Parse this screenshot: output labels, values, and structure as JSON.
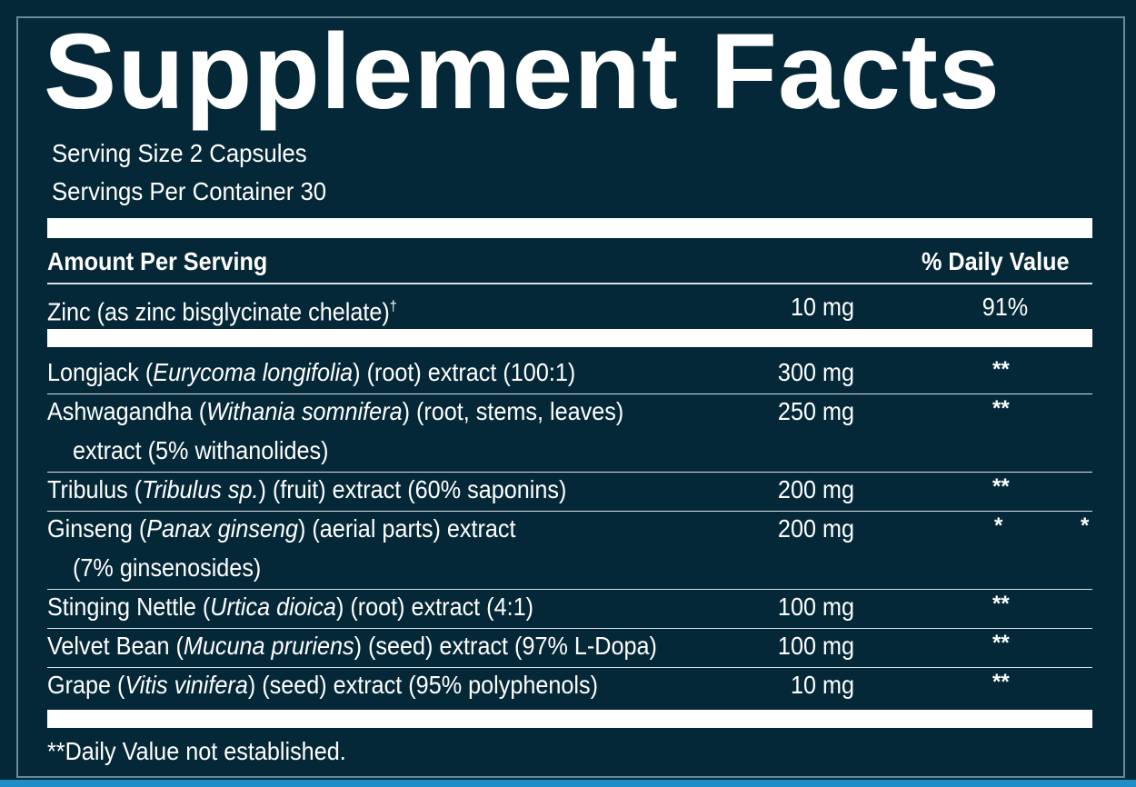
{
  "title": "Supplement Facts",
  "serving_size": "Serving Size 2 Capsules",
  "servings_per_container": "Servings Per Container 30",
  "header": {
    "amount_per_serving": "Amount Per Serving",
    "daily_value": "% Daily Value"
  },
  "zinc": {
    "name": "Zinc (as zinc bisglycinate chelate)",
    "dagger": "†",
    "amount": "10 mg",
    "dv": "91%"
  },
  "ingredients": [
    {
      "pre": "Longjack (",
      "latin": "Eurycoma longifolia",
      "post": ") (root) extract (100:1)",
      "line2": "",
      "amount": "300 mg",
      "dv": "**"
    },
    {
      "pre": "Ashwagandha (",
      "latin": "Withania somnifera",
      "post": ") (root, stems, leaves)",
      "line2": "extract (5% withanolides)",
      "amount": "250 mg",
      "dv": "**"
    },
    {
      "pre": "Tribulus (",
      "latin": "Tribulus sp.",
      "post": ") (fruit) extract (60% saponins)",
      "line2": "",
      "amount": "200 mg",
      "dv": "**"
    },
    {
      "pre": "Ginseng (",
      "latin": "Panax ginseng",
      "post": ") (aerial parts) extract",
      "line2": "(7% ginsenosides)",
      "amount": "200 mg",
      "dv": "*",
      "dv_extra": "*"
    },
    {
      "pre": "Stinging Nettle (",
      "latin": "Urtica dioica",
      "post": ") (root) extract (4:1)",
      "line2": "",
      "amount": "100 mg",
      "dv": "**"
    },
    {
      "pre": "Velvet Bean (",
      "latin": "Mucuna pruriens",
      "post": ") (seed) extract (97% L-Dopa)",
      "line2": "",
      "amount": "100 mg",
      "dv": "**"
    },
    {
      "pre": "Grape (",
      "latin": "Vitis vinifera",
      "post": ") (seed) extract (95% polyphenols)",
      "line2": "",
      "amount": "10 mg",
      "dv": "**"
    }
  ],
  "footnote": "**Daily Value not established.",
  "colors": {
    "background": "#052838",
    "text": "#ffffff",
    "accent_strip": "#1f8ec7"
  }
}
